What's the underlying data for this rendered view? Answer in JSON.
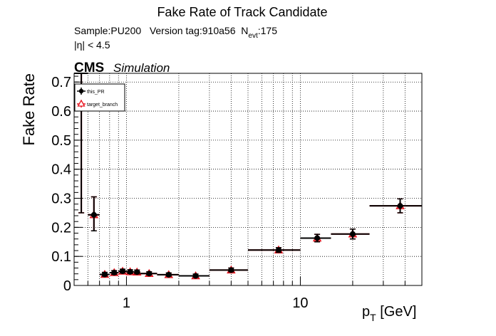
{
  "title": "Fake Rate of Track Candidate",
  "header": {
    "sample_line_prefix": "Sample:PU200   Version tag:910a56  N",
    "sample_line_sub": "evt",
    "sample_line_suffix": ":175",
    "eta_cut": "|η| < 4.5",
    "cms": "CMS",
    "simulation": "Simulation"
  },
  "colors": {
    "this_pr": "#000000",
    "target_branch": "#e8141e",
    "grid": "#000000",
    "background": "#ffffff"
  },
  "chart_data": {
    "type": "scatter",
    "title": "Fake Rate of Track Candidate",
    "xlabel_main": "p",
    "xlabel_sub": "T",
    "xlabel_unit": " [GeV]",
    "ylabel": "Fake Rate",
    "xscale": "log",
    "xlim": [
      0.5,
      50
    ],
    "ylim": [
      0,
      0.73
    ],
    "xticks": [
      {
        "value": 1,
        "label": "1"
      },
      {
        "value": 10,
        "label": "10"
      }
    ],
    "yticks": [
      {
        "value": 0,
        "label": "0"
      },
      {
        "value": 0.1,
        "label": "0.1"
      },
      {
        "value": 0.2,
        "label": "0.2"
      },
      {
        "value": 0.3,
        "label": "0.3"
      },
      {
        "value": 0.4,
        "label": "0.4"
      },
      {
        "value": 0.5,
        "label": "0.5"
      },
      {
        "value": 0.6,
        "label": "0.6"
      },
      {
        "value": 0.7,
        "label": "0.7"
      }
    ],
    "grid": true,
    "legend_position": "top-left",
    "series": [
      {
        "name": "this_PR",
        "marker": "filled-circle",
        "points": [
          {
            "x": 0.55,
            "xlo": 0.5,
            "xhi": 0.6,
            "y": 0.73,
            "ylo": 0.25,
            "yhi": 0.73
          },
          {
            "x": 0.65,
            "xlo": 0.6,
            "xhi": 0.7,
            "y": 0.243,
            "ylo": 0.188,
            "yhi": 0.305
          },
          {
            "x": 0.75,
            "xlo": 0.7,
            "xhi": 0.8,
            "y": 0.038,
            "ylo": 0.032,
            "yhi": 0.045
          },
          {
            "x": 0.85,
            "xlo": 0.8,
            "xhi": 0.9,
            "y": 0.044,
            "ylo": 0.038,
            "yhi": 0.051
          },
          {
            "x": 0.95,
            "xlo": 0.9,
            "xhi": 1.0,
            "y": 0.049,
            "ylo": 0.043,
            "yhi": 0.056
          },
          {
            "x": 1.05,
            "xlo": 1.0,
            "xhi": 1.1,
            "y": 0.047,
            "ylo": 0.041,
            "yhi": 0.054
          },
          {
            "x": 1.15,
            "xlo": 1.1,
            "xhi": 1.2,
            "y": 0.046,
            "ylo": 0.04,
            "yhi": 0.053
          },
          {
            "x": 1.35,
            "xlo": 1.2,
            "xhi": 1.5,
            "y": 0.041,
            "ylo": 0.036,
            "yhi": 0.047
          },
          {
            "x": 1.75,
            "xlo": 1.5,
            "xhi": 2.0,
            "y": 0.037,
            "ylo": 0.032,
            "yhi": 0.043
          },
          {
            "x": 2.5,
            "xlo": 2.0,
            "xhi": 3.0,
            "y": 0.033,
            "ylo": 0.028,
            "yhi": 0.039
          },
          {
            "x": 4.0,
            "xlo": 3.0,
            "xhi": 5.0,
            "y": 0.053,
            "ylo": 0.047,
            "yhi": 0.06
          },
          {
            "x": 7.5,
            "xlo": 5.0,
            "xhi": 10.0,
            "y": 0.122,
            "ylo": 0.114,
            "yhi": 0.13
          },
          {
            "x": 12.5,
            "xlo": 10.0,
            "xhi": 15.0,
            "y": 0.163,
            "ylo": 0.15,
            "yhi": 0.176
          },
          {
            "x": 20.0,
            "xlo": 15.0,
            "xhi": 25.0,
            "y": 0.177,
            "ylo": 0.16,
            "yhi": 0.194
          },
          {
            "x": 37.5,
            "xlo": 25.0,
            "xhi": 50.0,
            "y": 0.274,
            "ylo": 0.25,
            "yhi": 0.298
          }
        ]
      },
      {
        "name": "target_branch",
        "marker": "open-triangle",
        "points": [
          {
            "x": 0.55,
            "xlo": 0.5,
            "xhi": 0.6,
            "y": 0.73,
            "ylo": 0.25,
            "yhi": 0.73
          },
          {
            "x": 0.65,
            "xlo": 0.6,
            "xhi": 0.7,
            "y": 0.243,
            "ylo": 0.188,
            "yhi": 0.305
          },
          {
            "x": 0.75,
            "xlo": 0.7,
            "xhi": 0.8,
            "y": 0.038,
            "ylo": 0.032,
            "yhi": 0.045
          },
          {
            "x": 0.85,
            "xlo": 0.8,
            "xhi": 0.9,
            "y": 0.044,
            "ylo": 0.038,
            "yhi": 0.051
          },
          {
            "x": 0.95,
            "xlo": 0.9,
            "xhi": 1.0,
            "y": 0.049,
            "ylo": 0.043,
            "yhi": 0.056
          },
          {
            "x": 1.05,
            "xlo": 1.0,
            "xhi": 1.1,
            "y": 0.047,
            "ylo": 0.041,
            "yhi": 0.054
          },
          {
            "x": 1.15,
            "xlo": 1.1,
            "xhi": 1.2,
            "y": 0.046,
            "ylo": 0.04,
            "yhi": 0.053
          },
          {
            "x": 1.35,
            "xlo": 1.2,
            "xhi": 1.5,
            "y": 0.041,
            "ylo": 0.036,
            "yhi": 0.047
          },
          {
            "x": 1.75,
            "xlo": 1.5,
            "xhi": 2.0,
            "y": 0.037,
            "ylo": 0.032,
            "yhi": 0.043
          },
          {
            "x": 2.5,
            "xlo": 2.0,
            "xhi": 3.0,
            "y": 0.033,
            "ylo": 0.028,
            "yhi": 0.039
          },
          {
            "x": 4.0,
            "xlo": 3.0,
            "xhi": 5.0,
            "y": 0.053,
            "ylo": 0.047,
            "yhi": 0.06
          },
          {
            "x": 7.5,
            "xlo": 5.0,
            "xhi": 10.0,
            "y": 0.122,
            "ylo": 0.114,
            "yhi": 0.13
          },
          {
            "x": 12.5,
            "xlo": 10.0,
            "xhi": 15.0,
            "y": 0.163,
            "ylo": 0.15,
            "yhi": 0.176
          },
          {
            "x": 20.0,
            "xlo": 15.0,
            "xhi": 25.0,
            "y": 0.177,
            "ylo": 0.16,
            "yhi": 0.194
          },
          {
            "x": 37.5,
            "xlo": 25.0,
            "xhi": 50.0,
            "y": 0.274,
            "ylo": 0.25,
            "yhi": 0.298
          }
        ]
      }
    ]
  }
}
